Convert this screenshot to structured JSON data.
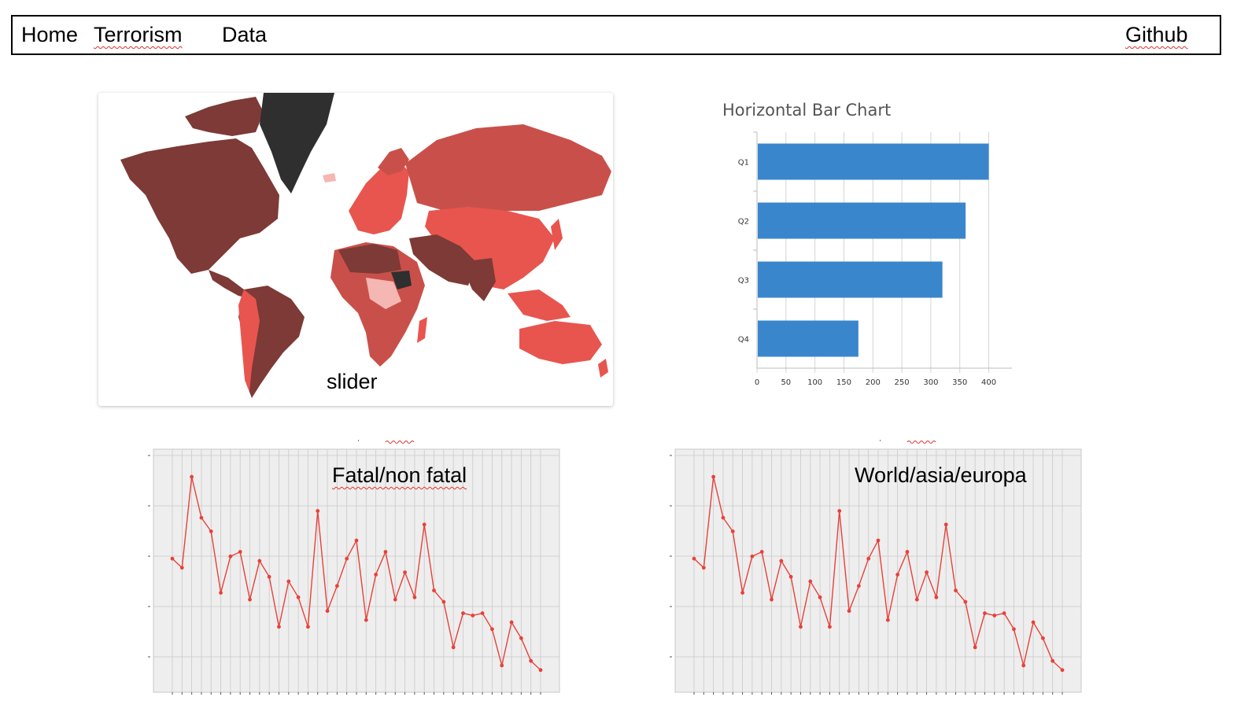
{
  "nav": {
    "home": "Home",
    "terrorism": "Terrorism",
    "data": "Data",
    "github": "Github"
  },
  "map_card": {
    "label": "slider"
  },
  "bar_chart": {
    "type": "bar",
    "orientation": "horizontal",
    "title": "Horizontal Bar Chart",
    "categories": [
      "Q1",
      "Q2",
      "Q3",
      "Q4"
    ],
    "values": [
      400,
      360,
      320,
      175
    ],
    "xticks": [
      0,
      50,
      100,
      150,
      200,
      250,
      300,
      350,
      400
    ],
    "xlim": [
      0,
      440
    ],
    "grid": true,
    "color": "#3a86cd"
  },
  "line_chart_left": {
    "overlay": "Fatal/non fatal"
  },
  "line_chart_right": {
    "overlay": "World/asia/europa"
  },
  "chart_data": [
    {
      "type": "bar",
      "orientation": "horizontal",
      "title": "Horizontal Bar Chart",
      "categories": [
        "Q1",
        "Q2",
        "Q3",
        "Q4"
      ],
      "values": [
        400,
        360,
        320,
        175
      ],
      "xlim": [
        0,
        440
      ]
    },
    {
      "type": "line",
      "title": "",
      "color": "#e8413a",
      "grid": true,
      "background": "#eeeeee",
      "ylim": [
        0,
        100
      ],
      "values": [
        56,
        52,
        92,
        74,
        68,
        41,
        57,
        59,
        38,
        55,
        48,
        26,
        46,
        39,
        26,
        77,
        33,
        44,
        56,
        64,
        29,
        49,
        59,
        38,
        50,
        39,
        71,
        42,
        37,
        17,
        32,
        31,
        32,
        25,
        9,
        28,
        21,
        11,
        7
      ]
    },
    {
      "type": "line",
      "title": "",
      "color": "#e8413a",
      "grid": true,
      "background": "#eeeeee",
      "ylim": [
        0,
        100
      ],
      "values": [
        56,
        52,
        92,
        74,
        68,
        41,
        57,
        59,
        38,
        55,
        48,
        26,
        46,
        39,
        26,
        77,
        33,
        44,
        56,
        64,
        29,
        49,
        59,
        38,
        50,
        39,
        71,
        42,
        37,
        17,
        32,
        31,
        32,
        25,
        9,
        28,
        21,
        11,
        7
      ]
    }
  ],
  "colors": {
    "map_dark": "#2f2f2f",
    "map_maroon": "#7d3a36",
    "map_red": "#c9504a",
    "map_bright": "#e8554e",
    "map_pink": "#f4b7b3"
  }
}
